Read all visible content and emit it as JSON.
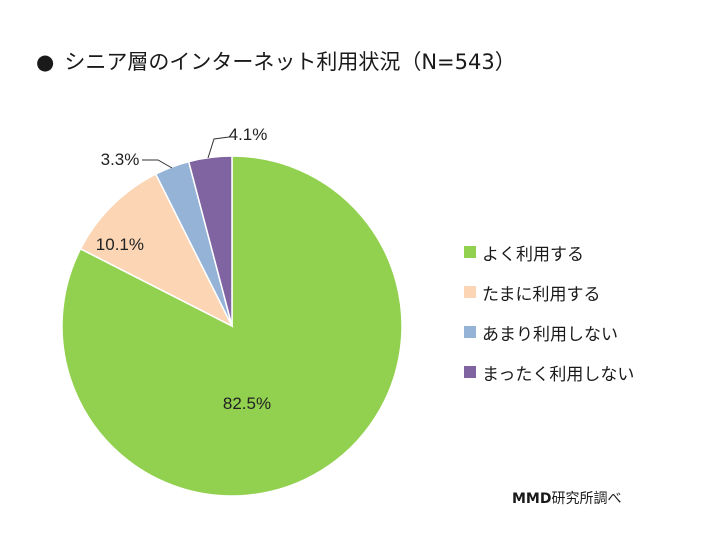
{
  "title": {
    "bullet": "●",
    "text": "シニア層のインターネット利用状況（N=543）"
  },
  "chart_data": {
    "type": "pie",
    "start_angle_deg": 0,
    "direction": "clockwise",
    "slices": [
      {
        "label": "よく利用する",
        "value": 82.5,
        "display": "82.5%",
        "color": "#92d050"
      },
      {
        "label": "たまに利用する",
        "value": 10.1,
        "display": "10.1%",
        "color": "#fcd5b5"
      },
      {
        "label": "あまり利用しない",
        "value": 3.3,
        "display": "3.3%",
        "color": "#95b3d7"
      },
      {
        "label": "まったく利用しない",
        "value": 4.1,
        "display": "4.1%",
        "color": "#8064a2"
      }
    ],
    "legend_position": "right"
  },
  "source": {
    "brand": "MMD",
    "text": "研究所調べ"
  }
}
